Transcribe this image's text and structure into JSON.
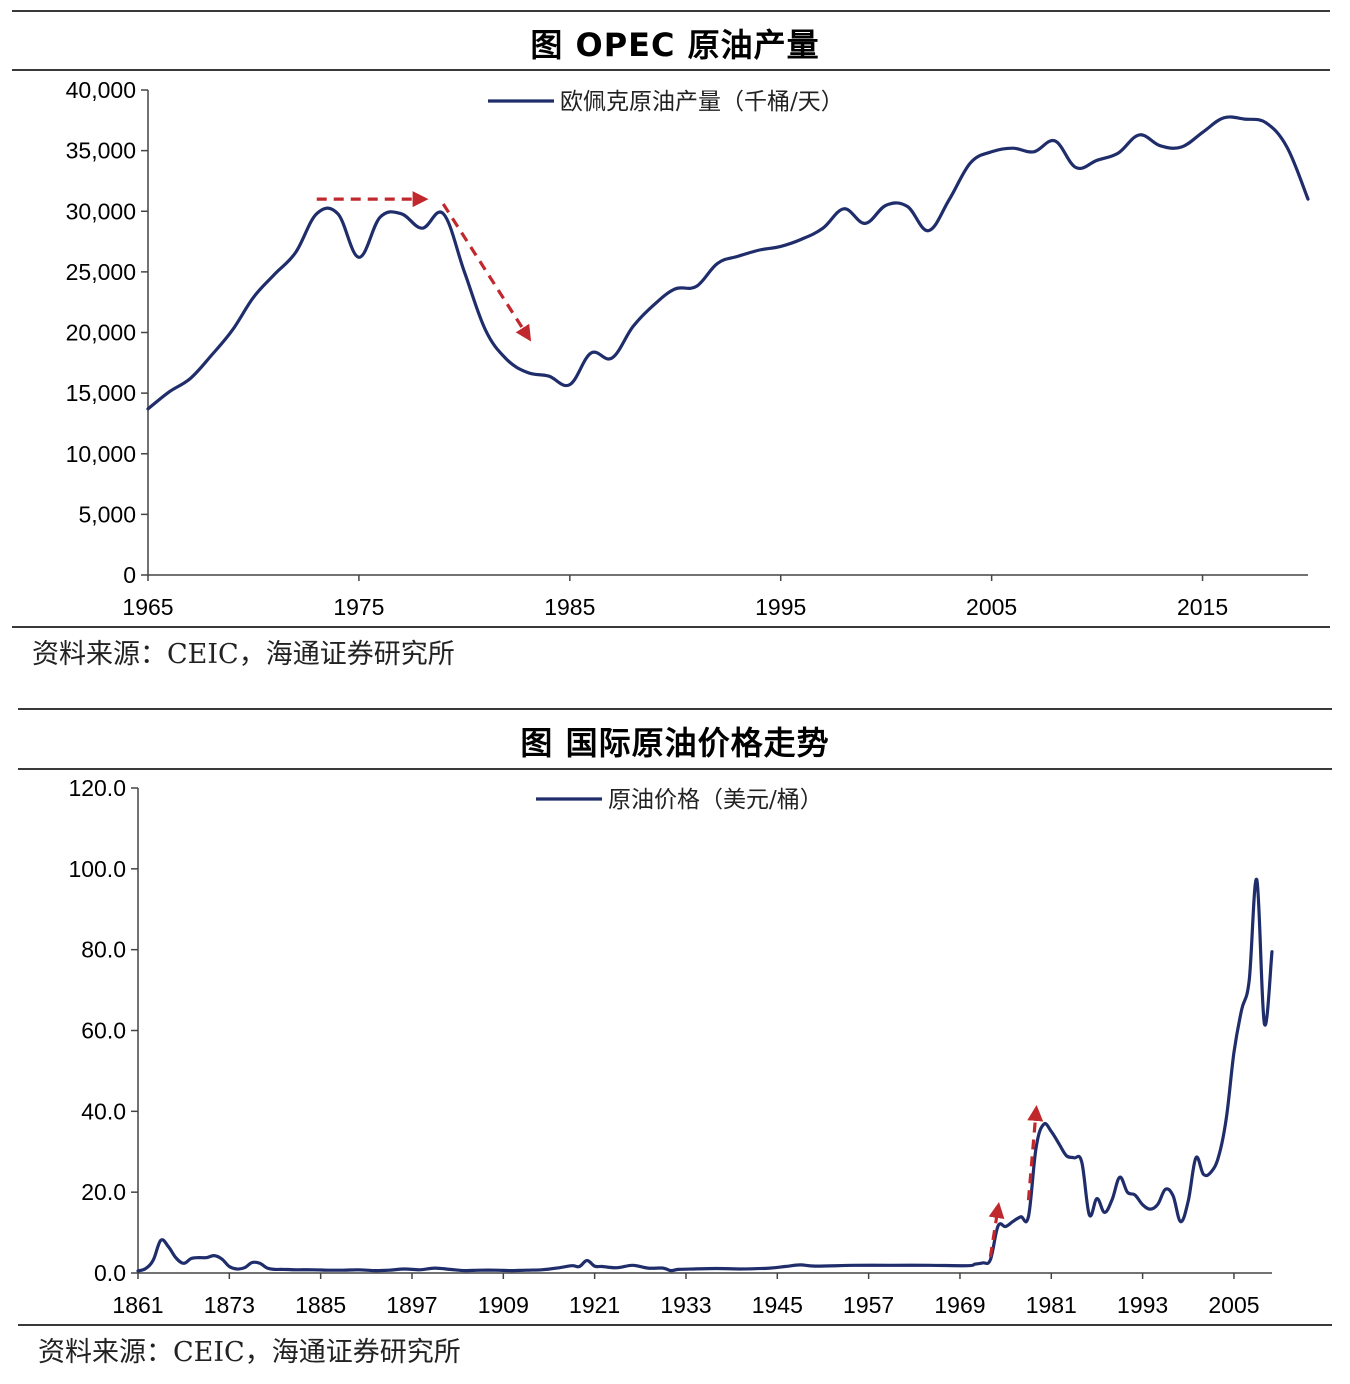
{
  "colors": {
    "line": "#1f2d6b",
    "arrow": "#c0282d",
    "axis": "#444444",
    "rule": "#3a3a3a"
  },
  "chart_data": [
    {
      "type": "line",
      "title": "图  OPEC 原油产量",
      "source": "资料来源：CEIC，海通证券研究所",
      "legend": "欧佩克原油产量（千桶/天）",
      "legend_position": "top-center",
      "xlim": [
        1965,
        2020
      ],
      "ylim": [
        0,
        40000
      ],
      "x_ticks": [
        "1965",
        "1975",
        "1985",
        "1995",
        "2005",
        "2015"
      ],
      "x_tick_values": [
        1965,
        1975,
        1985,
        1995,
        2005,
        2015
      ],
      "y_ticks": [
        "40,000",
        "35,000",
        "30,000",
        "25,000",
        "20,000",
        "15,000",
        "10,000",
        "5,000",
        "0"
      ],
      "y_tick_values": [
        40000,
        35000,
        30000,
        25000,
        20000,
        15000,
        10000,
        5000,
        0
      ],
      "grid": false,
      "series": [
        {
          "name": "欧佩克原油产量（千桶/天）",
          "x": [
            1965,
            1966,
            1967,
            1968,
            1969,
            1970,
            1971,
            1972,
            1973,
            1974,
            1975,
            1976,
            1977,
            1978,
            1979,
            1980,
            1981,
            1982,
            1983,
            1984,
            1985,
            1986,
            1987,
            1988,
            1989,
            1990,
            1991,
            1992,
            1993,
            1994,
            1995,
            1996,
            1997,
            1998,
            1999,
            2000,
            2001,
            2002,
            2003,
            2004,
            2005,
            2006,
            2007,
            2008,
            2009,
            2010,
            2011,
            2012,
            2013,
            2014,
            2015,
            2016,
            2017,
            2018,
            2019,
            2020
          ],
          "values": [
            13700,
            15100,
            16200,
            18100,
            20200,
            22900,
            24800,
            26600,
            29800,
            29800,
            26200,
            29500,
            29800,
            28600,
            29800,
            25000,
            20200,
            17800,
            16700,
            16400,
            15700,
            18300,
            17900,
            20500,
            22300,
            23600,
            23800,
            25700,
            26300,
            26800,
            27100,
            27700,
            28600,
            30200,
            29000,
            30500,
            30400,
            28400,
            31000,
            34000,
            34900,
            35200,
            34900,
            35800,
            33600,
            34200,
            34800,
            36300,
            35400,
            35300,
            36500,
            37700,
            37600,
            37300,
            35300,
            31000
          ]
        }
      ],
      "annotations": [
        {
          "type": "arrow",
          "direction": "right",
          "from": [
            1973,
            31000
          ],
          "to": [
            1978,
            31000
          ]
        },
        {
          "type": "arrow",
          "direction": "down-right",
          "from": [
            1979,
            30600
          ],
          "to": [
            1983,
            19700
          ]
        }
      ]
    },
    {
      "type": "line",
      "title": "图  国际原油价格走势",
      "source": "资料来源：CEIC，海通证券研究所",
      "legend": "原油价格（美元/桶）",
      "legend_position": "top-center",
      "xlim": [
        1861,
        2010
      ],
      "ylim": [
        0,
        120
      ],
      "x_ticks": [
        "1861",
        "1873",
        "1885",
        "1897",
        "1909",
        "1921",
        "1933",
        "1945",
        "1957",
        "1969",
        "1981",
        "1993",
        "2005"
      ],
      "x_tick_values": [
        1861,
        1873,
        1885,
        1897,
        1909,
        1921,
        1933,
        1945,
        1957,
        1969,
        1981,
        1993,
        2005
      ],
      "y_ticks": [
        "120.0",
        "100.0",
        "80.0",
        "60.0",
        "40.0",
        "20.0",
        "0.0"
      ],
      "y_tick_values": [
        120,
        100,
        80,
        60,
        40,
        20,
        0
      ],
      "grid": false,
      "series": [
        {
          "name": "原油价格（美元/桶）",
          "x": [
            1861,
            1862,
            1863,
            1864,
            1865,
            1866,
            1867,
            1868,
            1869,
            1870,
            1871,
            1872,
            1873,
            1874,
            1875,
            1876,
            1877,
            1878,
            1879,
            1880,
            1882,
            1884,
            1886,
            1888,
            1890,
            1892,
            1894,
            1896,
            1898,
            1900,
            1902,
            1904,
            1906,
            1908,
            1910,
            1912,
            1914,
            1916,
            1918,
            1919,
            1920,
            1921,
            1922,
            1924,
            1926,
            1928,
            1930,
            1931,
            1932,
            1934,
            1936,
            1938,
            1940,
            1944,
            1946,
            1948,
            1950,
            1955,
            1960,
            1965,
            1970,
            1971,
            1972,
            1973,
            1974,
            1975,
            1976,
            1977,
            1978,
            1979,
            1980,
            1981,
            1982,
            1983,
            1984,
            1985,
            1986,
            1987,
            1988,
            1989,
            1990,
            1991,
            1992,
            1993,
            1994,
            1995,
            1996,
            1997,
            1998,
            1999,
            2000,
            2001,
            2002,
            2003,
            2004,
            2005,
            2006,
            2007,
            2008,
            2009,
            2010
          ],
          "values": [
            0.5,
            1.1,
            3.2,
            8.1,
            6.5,
            3.7,
            2.4,
            3.6,
            3.8,
            3.8,
            4.3,
            3.5,
            1.6,
            1.0,
            1.3,
            2.6,
            2.4,
            1.2,
            0.9,
            0.9,
            0.8,
            0.8,
            0.7,
            0.7,
            0.8,
            0.6,
            0.7,
            1.0,
            0.8,
            1.2,
            0.9,
            0.6,
            0.7,
            0.7,
            0.6,
            0.7,
            0.8,
            1.2,
            1.8,
            1.6,
            3.1,
            1.7,
            1.6,
            1.3,
            1.9,
            1.2,
            1.2,
            0.6,
            0.9,
            1.0,
            1.1,
            1.1,
            1.0,
            1.2,
            1.6,
            2.0,
            1.7,
            1.9,
            1.9,
            1.9,
            1.8,
            2.2,
            2.5,
            3.3,
            11.6,
            11.5,
            12.8,
            13.9,
            14.0,
            31.0,
            36.8,
            35.0,
            32.0,
            29.0,
            28.5,
            27.5,
            14.4,
            18.4,
            15.0,
            18.2,
            23.7,
            20.0,
            19.3,
            16.9,
            15.8,
            17.0,
            20.7,
            19.1,
            12.7,
            17.9,
            28.5,
            24.4,
            25.0,
            28.9,
            38.3,
            54.5,
            65.1,
            72.4,
            97.3,
            61.7,
            79.5
          ]
        }
      ],
      "annotations": [
        {
          "type": "arrow",
          "direction": "up",
          "from": [
            1973,
            4
          ],
          "to": [
            1974,
            16
          ]
        },
        {
          "type": "arrow",
          "direction": "up",
          "from": [
            1978,
            18
          ],
          "to": [
            1979,
            40
          ]
        }
      ]
    }
  ]
}
